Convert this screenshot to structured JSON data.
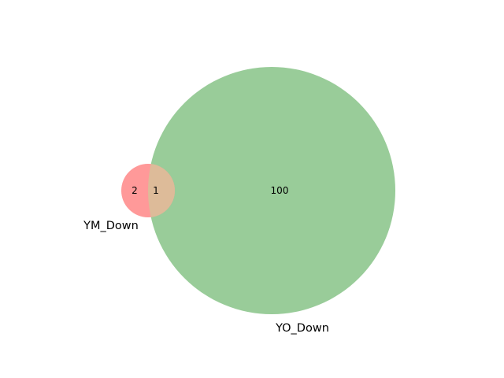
{
  "venn": {
    "sets": [
      {
        "name": "YM_Down",
        "color": "#ff9999"
      },
      {
        "name": "YO_Down",
        "color": "#99cc99"
      }
    ],
    "overlap_color": "#ddbb99",
    "counts": {
      "ym_only": "2",
      "overlap": "1",
      "yo_only": "100"
    }
  }
}
